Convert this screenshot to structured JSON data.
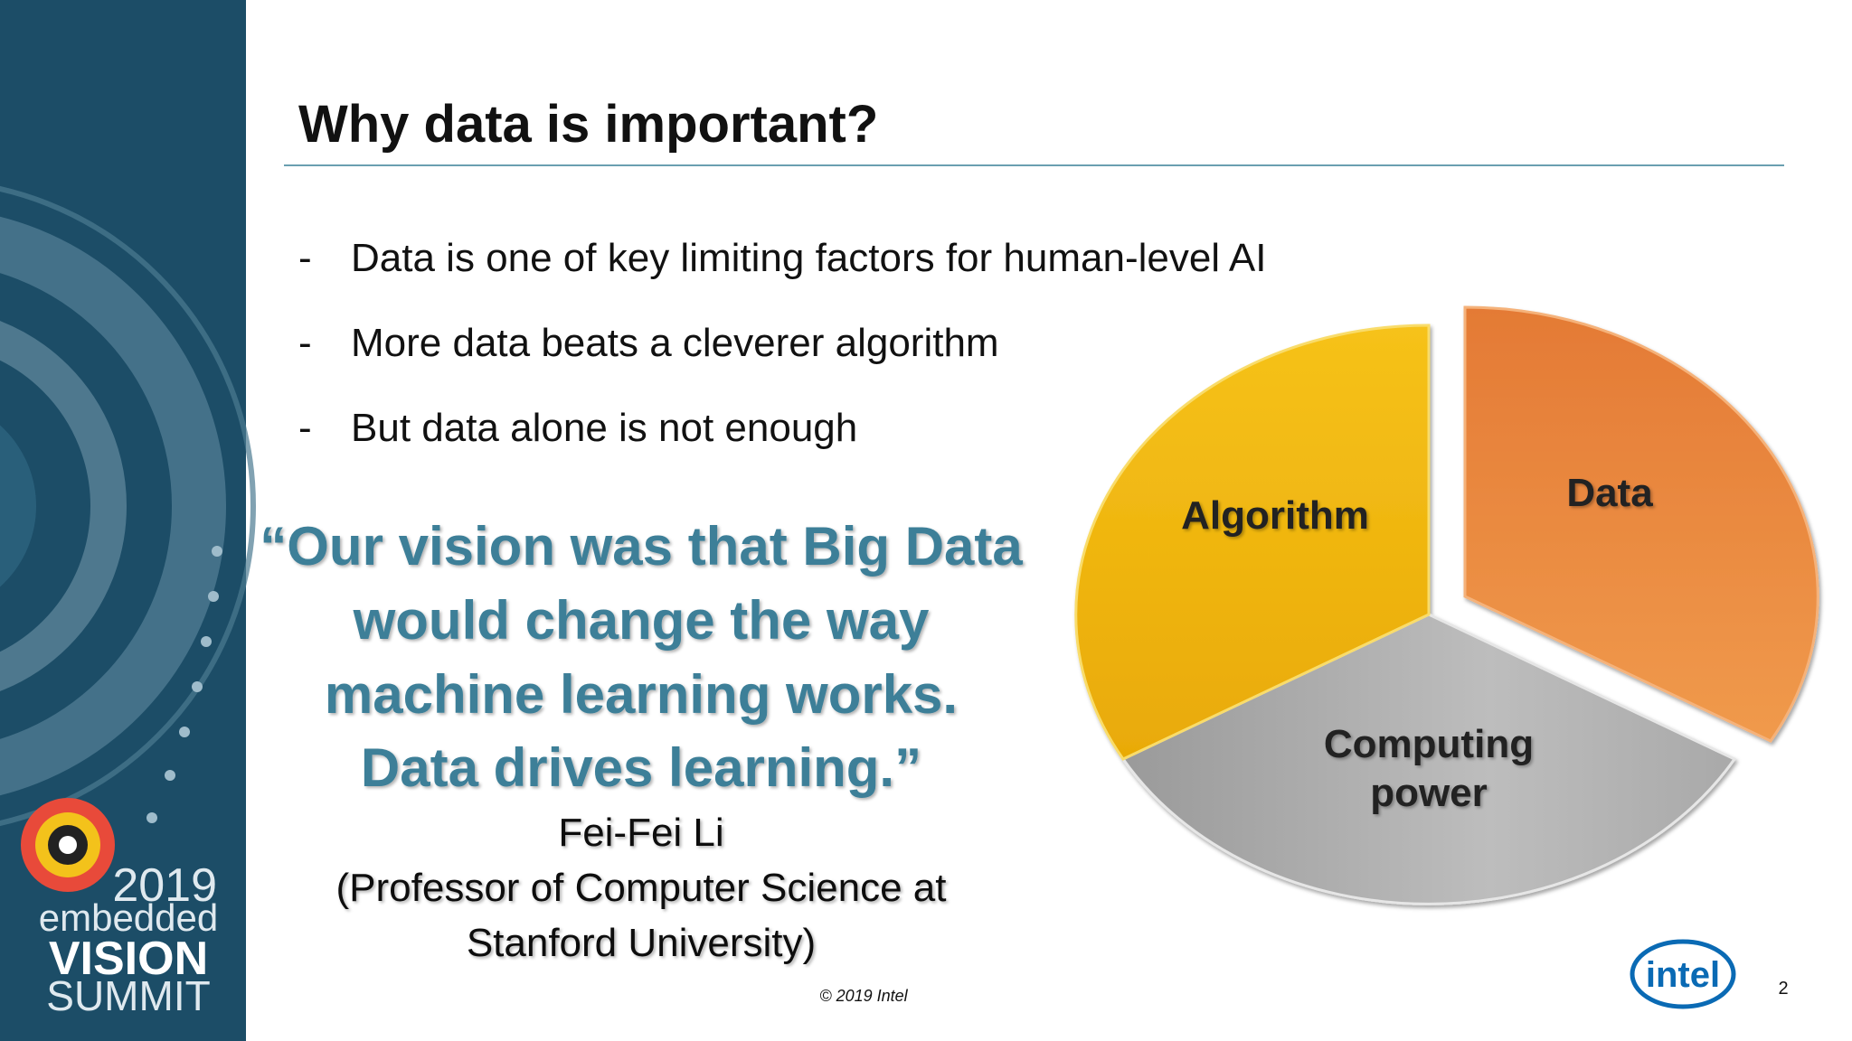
{
  "header": {
    "title": "Why data is important?"
  },
  "bullets": [
    "Data is one of key limiting factors for human-level AI",
    "More data beats a cleverer algorithm",
    "But data alone is not enough"
  ],
  "quote": {
    "lines": [
      "“Our vision was that Big Data",
      "would change the way",
      "machine learning works.",
      "Data drives learning.”"
    ]
  },
  "attribution": {
    "lines": [
      "Fei-Fei Li",
      "(Professor of Computer Science at",
      "Stanford University)"
    ]
  },
  "diagram": {
    "segments": [
      {
        "label": "Algorithm"
      },
      {
        "label": "Data"
      },
      {
        "label_lines": [
          "Computing",
          "power"
        ]
      }
    ]
  },
  "sidebar": {
    "year": "2019",
    "line1": "embedded",
    "line2": "VISION",
    "line3": "SUMMIT"
  },
  "footer": {
    "copyright": "© 2019 Intel",
    "page_number": "2",
    "logo": "intel"
  }
}
